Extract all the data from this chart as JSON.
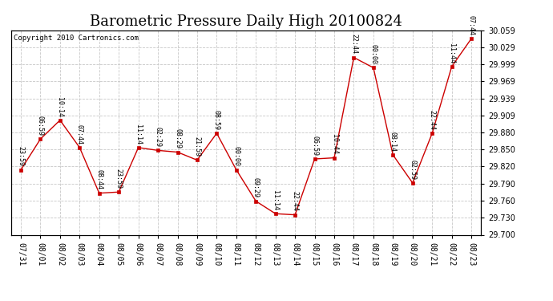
{
  "title": "Barometric Pressure Daily High 20100824",
  "copyright": "Copyright 2010 Cartronics.com",
  "x_labels": [
    "07/31",
    "08/01",
    "08/02",
    "08/03",
    "08/04",
    "08/05",
    "08/06",
    "08/07",
    "08/08",
    "08/09",
    "08/10",
    "08/11",
    "08/12",
    "08/13",
    "08/14",
    "08/15",
    "08/16",
    "08/17",
    "08/18",
    "08/19",
    "08/20",
    "08/21",
    "08/22",
    "08/23"
  ],
  "y_values": [
    29.814,
    29.868,
    29.901,
    29.853,
    29.773,
    29.775,
    29.853,
    29.848,
    29.845,
    29.831,
    29.878,
    29.814,
    29.759,
    29.737,
    29.735,
    29.833,
    29.835,
    30.011,
    29.993,
    29.84,
    29.791,
    29.878,
    29.995,
    30.044
  ],
  "point_labels": [
    "23:59",
    "06:59",
    "10:14",
    "07:44",
    "08:44",
    "23:59",
    "11:14",
    "02:29",
    "08:29",
    "21:59",
    "08:59",
    "00:00",
    "09:29",
    "11:14",
    "22:44",
    "06:59",
    "10:44",
    "22:44",
    "00:00",
    "08:14",
    "02:59",
    "22:44",
    "11:44",
    "07:44"
  ],
  "line_color": "#cc0000",
  "marker_color": "#cc0000",
  "bg_color": "#ffffff",
  "grid_color": "#c8c8c8",
  "ylim_min": 29.7,
  "ylim_max": 30.059,
  "ytick_values": [
    29.7,
    29.73,
    29.76,
    29.79,
    29.82,
    29.85,
    29.88,
    29.909,
    29.939,
    29.969,
    29.999,
    30.029,
    30.059
  ],
  "title_fontsize": 13,
  "label_fontsize": 7,
  "copyright_fontsize": 6.5,
  "point_label_fontsize": 6
}
